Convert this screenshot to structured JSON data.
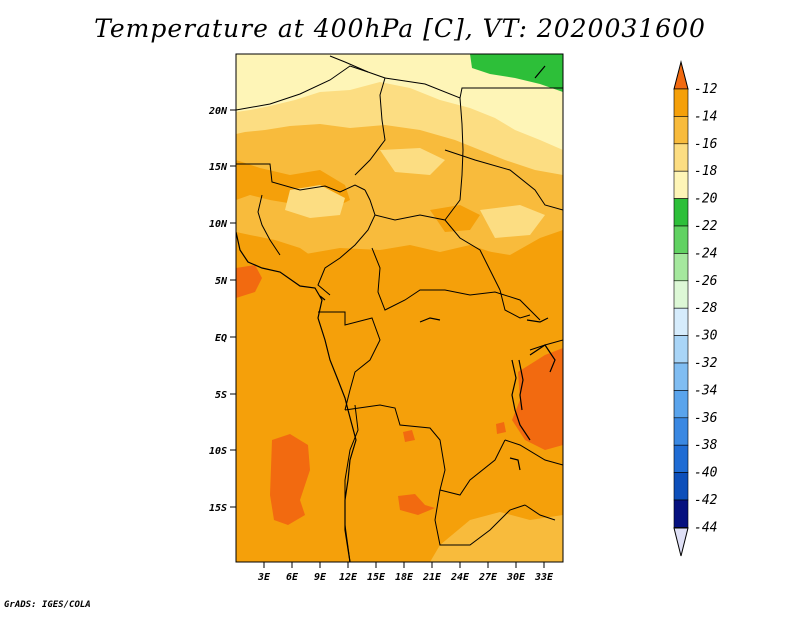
{
  "title": "Temperature at 400hPa [C], VT: 2020031600",
  "footer": "GrADS: IGES/COLA",
  "map": {
    "projection": "lat-lon",
    "lon_range_deg": [
      0,
      35
    ],
    "lat_range_deg": [
      -20,
      25
    ],
    "lat_ticks": [
      "20N",
      "15N",
      "10N",
      "5N",
      "EQ",
      "5S",
      "10S",
      "15S"
    ],
    "lon_ticks": [
      "3E",
      "6E",
      "9E",
      "12E",
      "15E",
      "18E",
      "21E",
      "24E",
      "27E",
      "30E",
      "33E"
    ],
    "dominant_range": "-16 to -14",
    "colors": {
      "c_m14_m12": "#f26a10",
      "c_m16_m14": "#f5a00a",
      "c_m18_m16": "#f8bb3c",
      "c_m20_m18": "#fcdd82",
      "c_m22_m20": "#fef5b7",
      "c_m24_m22": "#2dbf39"
    }
  },
  "colorbar": {
    "labels": [
      "-12",
      "-14",
      "-16",
      "-18",
      "-20",
      "-22",
      "-24",
      "-26",
      "-28",
      "-30",
      "-32",
      "-34",
      "-36",
      "-38",
      "-40",
      "-42",
      "-44"
    ],
    "colors": [
      "#f26a10",
      "#f5a00a",
      "#f8bb3c",
      "#fcdd82",
      "#fef5b7",
      "#2dbf39",
      "#61d262",
      "#a5e89e",
      "#ddf8d6",
      "#d6ecfc",
      "#a9d5f7",
      "#80bdf2",
      "#5aa4ec",
      "#3a88e2",
      "#1f6cd4",
      "#0d4fba",
      "#06117f",
      "#dfe0f6"
    ]
  }
}
